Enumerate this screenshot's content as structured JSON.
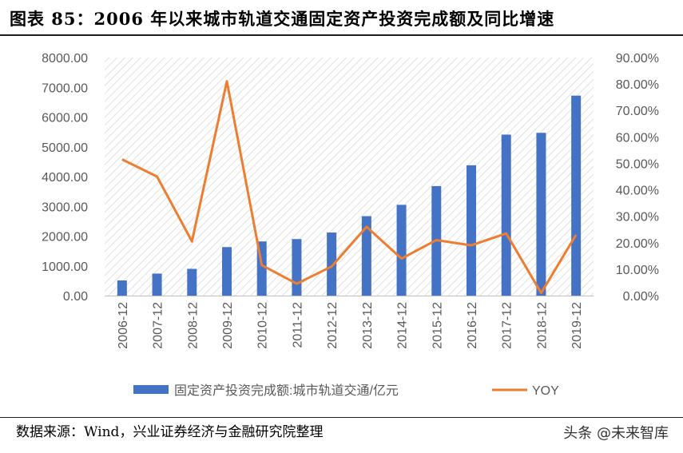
{
  "figure": {
    "title": "图表 85：2006 年以来城市轨道交通固定资产投资完成额及同比增速",
    "source": "数据来源：Wind，兴业证券经济与金融研究院整理",
    "watermark": "头条 @未来智库"
  },
  "chart_data": {
    "type": "bar+line",
    "categories": [
      "2006-12",
      "2007-12",
      "2008-12",
      "2009-12",
      "2010-12",
      "2011-12",
      "2012-12",
      "2013-12",
      "2014-12",
      "2015-12",
      "2016-12",
      "2017-12",
      "2018-12",
      "2019-12"
    ],
    "series": [
      {
        "name": "固定资产投资完成额:城市轨道交通/亿元",
        "type": "bar",
        "axis": "left",
        "color": "#4472C4",
        "values": [
          510,
          740,
          900,
          1630,
          1820,
          1900,
          2120,
          2670,
          3050,
          3680,
          4380,
          5410,
          5470,
          6720
        ]
      },
      {
        "name": "YOY",
        "type": "line",
        "axis": "right",
        "color": "#ED7D31",
        "values": [
          51.5,
          45.0,
          20.5,
          81.0,
          11.5,
          4.5,
          11.0,
          26.0,
          14.0,
          21.0,
          19.0,
          23.5,
          1.0,
          23.0
        ]
      }
    ],
    "y_left": {
      "min": 0,
      "max": 8000,
      "step": 1000,
      "tick_labels": [
        "0.00",
        "1000.00",
        "2000.00",
        "3000.00",
        "4000.00",
        "5000.00",
        "6000.00",
        "7000.00",
        "8000.00"
      ]
    },
    "y_right": {
      "min": 0,
      "max": 90,
      "step": 10,
      "tick_labels": [
        "0.00%",
        "10.00%",
        "20.00%",
        "30.00%",
        "40.00%",
        "50.00%",
        "60.00%",
        "70.00%",
        "80.00%",
        "90.00%"
      ]
    },
    "background": "diagonal hatch",
    "legend_position": "bottom"
  }
}
